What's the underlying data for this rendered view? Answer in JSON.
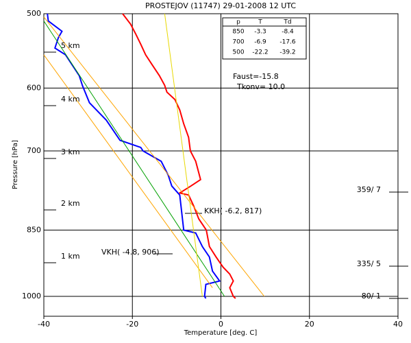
{
  "chart_data": {
    "type": "line",
    "title": "PROSTEJOV (11747)    29-01-2008   12   UTC",
    "x_label": "Temperature [deg. C]",
    "y_label": "Pressure [hPa]",
    "xlim": [
      -40,
      40
    ],
    "xticks": [
      -40,
      -20,
      0,
      20,
      40
    ],
    "ylim": [
      500,
      1050
    ],
    "yticks": [
      500,
      600,
      700,
      850,
      1000
    ],
    "y_log": true,
    "grid": true,
    "series": [
      {
        "color": "#ff0000",
        "x": [
          -22.2,
          -20.4,
          -19.2,
          -18.1,
          -17.0,
          -15.5,
          -13.9,
          -12.7,
          -12.2,
          -10.4,
          -9.3,
          -8.4,
          -7.3,
          -6.9,
          -5.7,
          -4.6,
          -6.8,
          -9.3,
          -7.3,
          -6.2,
          -5.0,
          -3.3,
          -2.6,
          -1.1,
          0.5,
          2.0,
          2.8,
          2.0,
          2.8,
          3.3
        ],
        "values": [
          500,
          513,
          526,
          539,
          553,
          567,
          582,
          596,
          606,
          617,
          633,
          655,
          677,
          700,
          718,
          751,
          763,
          776,
          780,
          800,
          827,
          850,
          885,
          908,
          931,
          947,
          963,
          979,
          1000,
          1005
        ]
      },
      {
        "color": "#0000ff",
        "x": [
          -39.2,
          -39.0,
          -35.9,
          -36.7,
          -37.5,
          -35.1,
          -33.6,
          -32.0,
          -31.3,
          -29.7,
          -25.9,
          -22.8,
          -18.1,
          -17.6,
          -13.5,
          -11.9,
          -11.1,
          -9.3,
          -8.4,
          -5.7,
          -4.2,
          -2.6,
          -1.9,
          -0.3,
          -3.4,
          -3.7,
          -3.4
        ],
        "values": [
          500,
          509,
          522,
          530,
          544,
          553,
          567,
          582,
          596,
          622,
          649,
          682,
          694,
          700,
          718,
          743,
          763,
          780,
          850,
          856,
          885,
          908,
          940,
          963,
          971,
          1000,
          1005
        ]
      },
      {
        "color": "#00a000",
        "x": [
          -40,
          0.8
        ],
        "values": [
          509,
          1000
        ]
      },
      {
        "color": "#ffa500",
        "x": [
          -40,
          9.8
        ],
        "values": [
          504,
          1000
        ]
      },
      {
        "color": "#ffa500",
        "x": [
          -40,
          -1.9
        ],
        "values": [
          553,
          979
        ]
      },
      {
        "color": "#e8d800",
        "x": [
          -12.7,
          -4.2
        ],
        "values": [
          500,
          1000
        ]
      }
    ],
    "km_labels": [
      "5 km",
      "4 km",
      "3 km",
      "2 km",
      "1 km"
    ],
    "wind_labels": [
      "359/ 7",
      "335/ 5",
      "80/ 1"
    ],
    "annotations": [
      "KKH( -6.2, 817)",
      "VKH( -4.8, 906)"
    ],
    "table": {
      "header": [
        "p",
        "T",
        "Td"
      ],
      "rows": [
        [
          850,
          -3.3,
          -8.4
        ],
        [
          700,
          -6.9,
          -17.6
        ],
        [
          500,
          -22.2,
          -39.2
        ]
      ]
    },
    "indices": [
      "Faust=-15.8",
      "Tkonv= 10.0"
    ]
  }
}
